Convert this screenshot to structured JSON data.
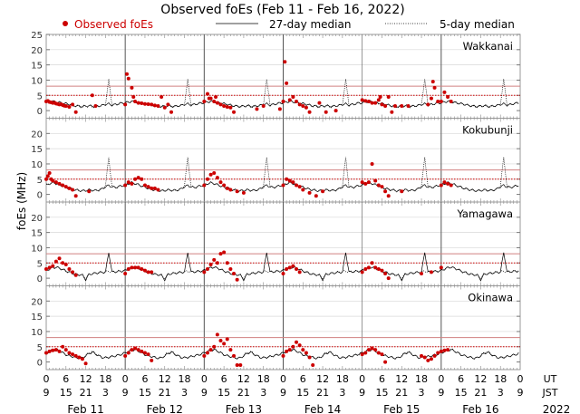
{
  "chart_data": {
    "type": "scatter",
    "title": "Observed foEs (Feb 11 - Feb 16, 2022)",
    "ylabel": "foEs (MHz)",
    "legend": {
      "placement": "top",
      "observed": "Observed foEs",
      "median27": "27-day median",
      "median5": "5-day median"
    },
    "colors": {
      "observed": "#cc0000",
      "median": "#000000",
      "threshold": "#cc0000",
      "grid": "#d8d8d8",
      "separator": "#555555"
    },
    "ylim": [
      -2.5,
      25
    ],
    "yticks": [
      0,
      5,
      10,
      15,
      20,
      25
    ],
    "xlim_hours": [
      0,
      144
    ],
    "x_axis": {
      "ut_label": "UT",
      "jst_label": "JST",
      "ut_ticks": [
        "0",
        "6",
        "12",
        "18"
      ],
      "jst_ticks": [
        "9",
        "15",
        "21",
        "3"
      ],
      "days": [
        "Feb 11",
        "Feb 12",
        "Feb 13",
        "Feb 14",
        "Feb 15",
        "Feb 16"
      ],
      "year": "2022"
    },
    "thresholds": {
      "solid": 8,
      "dotted": 5
    },
    "stations": [
      {
        "name": "Wakkanai",
        "show_top_tick": true,
        "median27": [
          2.6,
          2.8,
          3,
          2.9,
          2.7,
          2.5,
          2.3,
          2.1,
          1.8,
          1.6,
          1.5,
          1.4,
          1.5,
          1.6,
          1.5,
          1.4,
          1.6,
          1.7,
          2,
          2.2,
          1.8,
          2,
          2.3,
          2.5
        ],
        "median5": [
          2.5,
          2.9,
          3.1,
          2.8,
          2.6,
          2.4,
          2.2,
          2,
          1.7,
          1.5,
          1.3,
          1.2,
          1.4,
          1.5,
          1.3,
          1.2,
          1.5,
          1.6,
          2.2,
          10,
          2,
          1.9,
          2.2,
          2.4
        ],
        "observed": [
          [
            0,
            3
          ],
          [
            0.5,
            3.2
          ],
          [
            1,
            2.8
          ],
          [
            1.5,
            2.7
          ],
          [
            2,
            2.5
          ],
          [
            2.5,
            2.6
          ],
          [
            3,
            2.3
          ],
          [
            3.5,
            2.2
          ],
          [
            4,
            2
          ],
          [
            4.5,
            2.1
          ],
          [
            5,
            1.8
          ],
          [
            5.5,
            1.6
          ],
          [
            6,
            1.5
          ],
          [
            7,
            1.2
          ],
          [
            8,
            2
          ],
          [
            9,
            -0.5
          ],
          [
            14,
            5
          ],
          [
            15,
            1.5
          ],
          [
            24,
            2
          ],
          [
            24.5,
            12
          ],
          [
            25,
            10.5
          ],
          [
            26,
            7.5
          ],
          [
            26.5,
            4.5
          ],
          [
            27,
            3
          ],
          [
            28,
            2.5
          ],
          [
            29,
            2.4
          ],
          [
            30,
            2.2
          ],
          [
            31,
            2.1
          ],
          [
            32,
            2
          ],
          [
            33,
            1.7
          ],
          [
            34,
            1.5
          ],
          [
            35,
            4.5
          ],
          [
            36,
            1
          ],
          [
            37,
            2
          ],
          [
            38,
            -0.5
          ],
          [
            48,
            3
          ],
          [
            49,
            5.5
          ],
          [
            49.5,
            4
          ],
          [
            50,
            4
          ],
          [
            51,
            3
          ],
          [
            51.5,
            4.5
          ],
          [
            52,
            2.5
          ],
          [
            53,
            2
          ],
          [
            54,
            1.5
          ],
          [
            55,
            1.2
          ],
          [
            56,
            1
          ],
          [
            57,
            -0.5
          ],
          [
            64,
            0.5
          ],
          [
            66,
            1.5
          ],
          [
            71,
            0.5
          ],
          [
            72,
            3
          ],
          [
            72.5,
            16
          ],
          [
            73,
            9
          ],
          [
            74,
            3.5
          ],
          [
            75,
            4.5
          ],
          [
            76,
            3
          ],
          [
            77,
            2
          ],
          [
            78,
            1.5
          ],
          [
            79,
            1
          ],
          [
            80,
            -0.5
          ],
          [
            83,
            2.5
          ],
          [
            85,
            -0.5
          ],
          [
            88,
            0
          ],
          [
            96,
            3.5
          ],
          [
            97,
            3.2
          ],
          [
            98,
            3
          ],
          [
            99,
            2.5
          ],
          [
            100,
            2.5
          ],
          [
            101,
            3.5
          ],
          [
            101.5,
            4.5
          ],
          [
            102,
            2
          ],
          [
            103,
            1.5
          ],
          [
            104,
            4.5
          ],
          [
            105,
            -0.5
          ],
          [
            106,
            1.5
          ],
          [
            108,
            1.5
          ],
          [
            110,
            1.5
          ],
          [
            116,
            2
          ],
          [
            117,
            4
          ],
          [
            117.5,
            9.5
          ],
          [
            118,
            7.5
          ],
          [
            119,
            3
          ],
          [
            120,
            3
          ],
          [
            121,
            6
          ],
          [
            122,
            4.5
          ],
          [
            123,
            3
          ]
        ]
      },
      {
        "name": "Kokubunji",
        "show_top_tick": false,
        "median27": [
          3,
          3.5,
          3.8,
          3.6,
          3.2,
          2.8,
          2.4,
          2,
          1.7,
          1.5,
          1.3,
          1.2,
          1.3,
          1.5,
          1.4,
          1.3,
          1.5,
          1.8,
          2.5,
          3,
          2.4,
          2.3,
          2.6,
          2.8
        ],
        "median5": [
          3.1,
          3.6,
          3.9,
          3.5,
          3.1,
          2.7,
          2.3,
          1.9,
          1.6,
          1.4,
          1.2,
          1.1,
          1.2,
          1.4,
          1.3,
          1.2,
          1.4,
          1.7,
          3,
          12,
          2.6,
          2.2,
          2.5,
          2.9
        ],
        "observed": [
          [
            0,
            5
          ],
          [
            0.5,
            6
          ],
          [
            1,
            7
          ],
          [
            1.5,
            5
          ],
          [
            2,
            4.5
          ],
          [
            3,
            4
          ],
          [
            4,
            3.5
          ],
          [
            5,
            3
          ],
          [
            6,
            2.5
          ],
          [
            7,
            2
          ],
          [
            8,
            1.5
          ],
          [
            9,
            -0.5
          ],
          [
            13,
            1
          ],
          [
            24,
            3
          ],
          [
            25,
            4
          ],
          [
            26,
            3.5
          ],
          [
            27,
            5
          ],
          [
            28,
            5.5
          ],
          [
            29,
            5
          ],
          [
            30,
            3
          ],
          [
            31,
            2.5
          ],
          [
            32,
            2
          ],
          [
            33,
            2
          ],
          [
            34,
            1.5
          ],
          [
            48,
            3
          ],
          [
            49,
            5
          ],
          [
            50,
            6.5
          ],
          [
            51,
            7
          ],
          [
            52,
            5.5
          ],
          [
            53,
            4
          ],
          [
            54,
            3
          ],
          [
            55,
            2
          ],
          [
            56,
            1.5
          ],
          [
            58,
            1
          ],
          [
            60,
            0.5
          ],
          [
            72,
            3
          ],
          [
            73,
            5
          ],
          [
            74,
            4.5
          ],
          [
            75,
            4
          ],
          [
            76,
            3
          ],
          [
            77,
            2.5
          ],
          [
            78,
            1.5
          ],
          [
            80,
            0.5
          ],
          [
            82,
            -0.5
          ],
          [
            84,
            1
          ],
          [
            96,
            4
          ],
          [
            97,
            3.5
          ],
          [
            98,
            4
          ],
          [
            99,
            10
          ],
          [
            100,
            4.5
          ],
          [
            101,
            3
          ],
          [
            102,
            2.5
          ],
          [
            103,
            1
          ],
          [
            104,
            -0.5
          ],
          [
            108,
            1
          ],
          [
            120,
            3
          ],
          [
            121,
            4
          ],
          [
            122,
            3.5
          ],
          [
            123,
            3
          ]
        ]
      },
      {
        "name": "Yamagawa",
        "show_top_tick": false,
        "median27": [
          2.5,
          3,
          3.4,
          3.6,
          3.3,
          2.9,
          2.4,
          2,
          1.6,
          1.3,
          1.2,
          1,
          -0.5,
          1.2,
          1.5,
          1.6,
          1.8,
          1.9,
          2,
          8.5,
          2,
          2.1,
          2.2,
          2.3
        ],
        "median5": [
          2.6,
          3.1,
          3.5,
          3.7,
          3.3,
          2.8,
          2.3,
          1.9,
          1.5,
          1.2,
          1.1,
          0.9,
          0,
          1.3,
          1.5,
          1.7,
          1.9,
          2,
          2.1,
          2.3,
          2.1,
          2.2,
          2.3,
          2.4
        ],
        "observed": [
          [
            0,
            3
          ],
          [
            1,
            3.5
          ],
          [
            2,
            4
          ],
          [
            3,
            5.5
          ],
          [
            4,
            6.5
          ],
          [
            5,
            5
          ],
          [
            6,
            4.5
          ],
          [
            7,
            3
          ],
          [
            8,
            2
          ],
          [
            9,
            1
          ],
          [
            24,
            1.5
          ],
          [
            25,
            3
          ],
          [
            26,
            3.5
          ],
          [
            27,
            3.5
          ],
          [
            28,
            3.5
          ],
          [
            29,
            3
          ],
          [
            30,
            2.5
          ],
          [
            31,
            2
          ],
          [
            32,
            2
          ],
          [
            48,
            2
          ],
          [
            49,
            3
          ],
          [
            50,
            4.5
          ],
          [
            51,
            6
          ],
          [
            52,
            5
          ],
          [
            53,
            8
          ],
          [
            54,
            8.5
          ],
          [
            55,
            5
          ],
          [
            56,
            3
          ],
          [
            57,
            1.5
          ],
          [
            58,
            -0.5
          ],
          [
            72,
            1.5
          ],
          [
            73,
            3
          ],
          [
            74,
            3.5
          ],
          [
            75,
            4
          ],
          [
            76,
            3
          ],
          [
            77,
            2
          ],
          [
            96,
            2
          ],
          [
            97,
            3
          ],
          [
            98,
            3.5
          ],
          [
            99,
            5
          ],
          [
            100,
            3.5
          ],
          [
            101,
            3
          ],
          [
            102,
            2.5
          ],
          [
            103,
            1.5
          ],
          [
            104,
            0
          ],
          [
            114,
            1.5
          ],
          [
            117,
            2
          ],
          [
            120,
            3.5
          ]
        ]
      },
      {
        "name": "Okinawa",
        "show_top_tick": false,
        "median27": [
          3,
          3.4,
          3.8,
          4,
          3.6,
          3,
          2.4,
          2,
          1.8,
          1.5,
          1.3,
          1.4,
          2,
          2.8,
          3.2,
          2.6,
          2,
          1.5,
          1.4,
          1.6,
          1.8,
          2,
          2.3,
          2.6
        ],
        "median5": [
          3.1,
          3.5,
          3.9,
          4.2,
          3.7,
          3.1,
          2.5,
          2.1,
          1.8,
          1.4,
          1.2,
          1.3,
          2.2,
          3,
          3.4,
          2.8,
          2.1,
          1.6,
          1.3,
          1.5,
          1.7,
          2,
          2.2,
          2.5
        ],
        "observed": [
          [
            0,
            3
          ],
          [
            1,
            3.5
          ],
          [
            2,
            3.8
          ],
          [
            3,
            4
          ],
          [
            4,
            3.5
          ],
          [
            5,
            5
          ],
          [
            6,
            4
          ],
          [
            7,
            3
          ],
          [
            8,
            2.5
          ],
          [
            9,
            2
          ],
          [
            10,
            1.5
          ],
          [
            11,
            1
          ],
          [
            12,
            -0.5
          ],
          [
            24,
            2
          ],
          [
            25,
            3
          ],
          [
            26,
            4
          ],
          [
            27,
            4.5
          ],
          [
            28,
            4
          ],
          [
            29,
            3.5
          ],
          [
            30,
            3
          ],
          [
            31,
            2.5
          ],
          [
            32,
            0.5
          ],
          [
            48,
            2
          ],
          [
            49,
            3
          ],
          [
            50,
            4
          ],
          [
            51,
            5
          ],
          [
            52,
            9
          ],
          [
            53,
            7
          ],
          [
            54,
            6
          ],
          [
            55,
            7.5
          ],
          [
            56,
            4
          ],
          [
            57,
            2
          ],
          [
            58,
            -1
          ],
          [
            59,
            -1
          ],
          [
            72,
            2
          ],
          [
            73,
            3.5
          ],
          [
            74,
            4
          ],
          [
            75,
            5
          ],
          [
            76,
            6.5
          ],
          [
            77,
            5.5
          ],
          [
            78,
            4
          ],
          [
            79,
            3
          ],
          [
            80,
            1.5
          ],
          [
            81,
            -1
          ],
          [
            96,
            2.5
          ],
          [
            97,
            3
          ],
          [
            98,
            4
          ],
          [
            99,
            4.5
          ],
          [
            100,
            4
          ],
          [
            101,
            3
          ],
          [
            102,
            2.5
          ],
          [
            103,
            0
          ],
          [
            114,
            2
          ],
          [
            115,
            1.5
          ],
          [
            116,
            0.5
          ],
          [
            117,
            1
          ],
          [
            118,
            2
          ],
          [
            119,
            3
          ],
          [
            120,
            3.5
          ],
          [
            121,
            3.8
          ],
          [
            122,
            4
          ]
        ]
      }
    ]
  }
}
